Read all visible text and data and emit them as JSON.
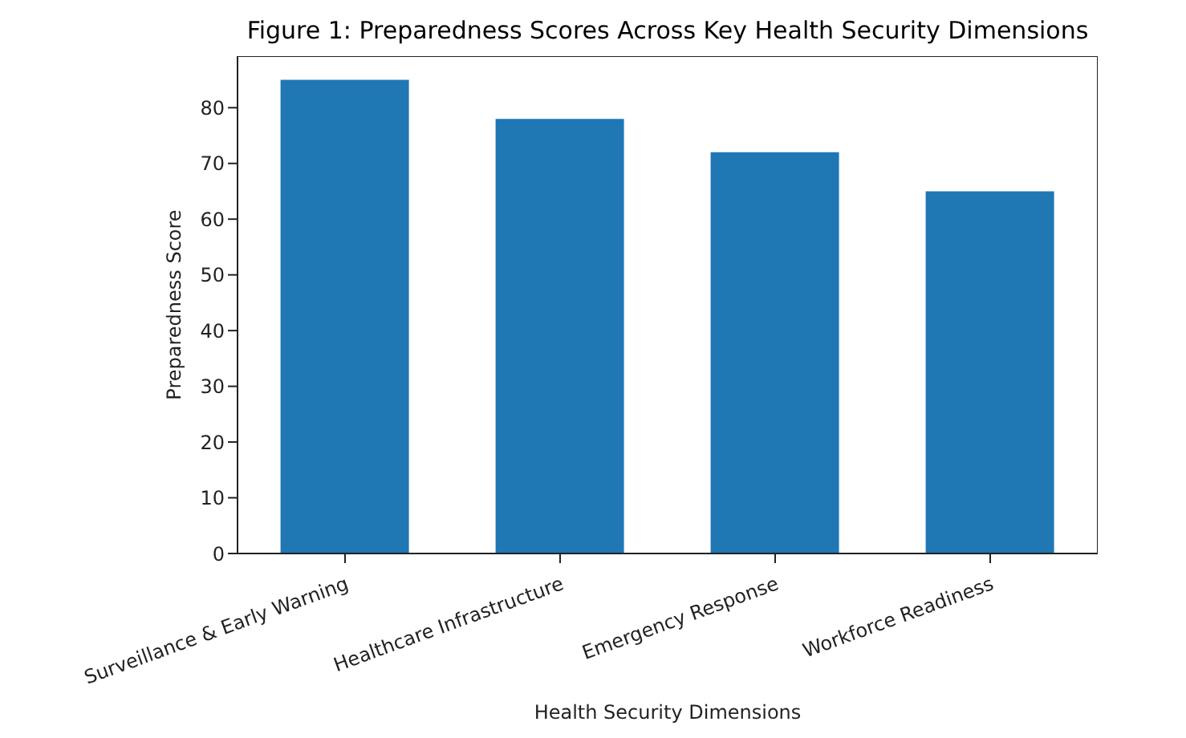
{
  "chart_data": {
    "type": "bar",
    "title": "Figure 1: Preparedness Scores Across Key Health Security Dimensions",
    "xlabel": "Health Security Dimensions",
    "ylabel": "Preparedness Score",
    "categories": [
      "Surveillance & Early Warning",
      "Healthcare Infrastructure",
      "Emergency Response",
      "Workforce Readiness"
    ],
    "values": [
      85,
      78,
      72,
      65
    ],
    "color": "#1f77b4",
    "ylim": [
      0,
      89.25
    ],
    "yticks": [
      0,
      10,
      20,
      30,
      40,
      50,
      60,
      70,
      80
    ],
    "grid": false
  }
}
